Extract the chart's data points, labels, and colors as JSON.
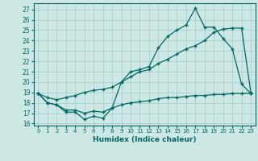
{
  "xlabel": "Humidex (Indice chaleur)",
  "background_color": "#cde8e4",
  "grid_color": "#a0cccc",
  "line_color": "#006666",
  "xlim": [
    -0.5,
    23.5
  ],
  "ylim": [
    15.8,
    27.6
  ],
  "xticks": [
    0,
    1,
    2,
    3,
    4,
    5,
    6,
    7,
    8,
    9,
    10,
    11,
    12,
    13,
    14,
    15,
    16,
    17,
    18,
    19,
    20,
    21,
    22,
    23
  ],
  "yticks": [
    16,
    17,
    18,
    19,
    20,
    21,
    22,
    23,
    24,
    25,
    26,
    27
  ],
  "line1_x": [
    0,
    1,
    2,
    3,
    4,
    5,
    6,
    7,
    8,
    9,
    10,
    11,
    12,
    13,
    14,
    15,
    16,
    17,
    18,
    19,
    20,
    21,
    22,
    23
  ],
  "line1_y": [
    18.9,
    18.0,
    17.8,
    17.1,
    17.1,
    16.4,
    16.7,
    16.5,
    17.5,
    20.0,
    21.0,
    21.2,
    21.5,
    23.3,
    24.4,
    25.0,
    25.5,
    27.1,
    25.3,
    25.3,
    24.2,
    23.2,
    19.8,
    18.9
  ],
  "line2_x": [
    0,
    1,
    2,
    3,
    4,
    5,
    6,
    7,
    8,
    9,
    10,
    11,
    12,
    13,
    14,
    15,
    16,
    17,
    18,
    19,
    20,
    21,
    22,
    23
  ],
  "line2_y": [
    18.9,
    18.5,
    18.3,
    18.5,
    18.7,
    19.0,
    19.2,
    19.3,
    19.5,
    20.0,
    20.5,
    21.0,
    21.2,
    21.8,
    22.2,
    22.7,
    23.2,
    23.5,
    24.0,
    24.8,
    25.1,
    25.2,
    25.2,
    19.0
  ],
  "line3_x": [
    0,
    1,
    2,
    3,
    4,
    5,
    6,
    7,
    8,
    9,
    10,
    11,
    12,
    13,
    14,
    15,
    16,
    17,
    18,
    19,
    20,
    21,
    22,
    23
  ],
  "line3_y": [
    18.9,
    18.0,
    17.8,
    17.3,
    17.3,
    17.0,
    17.2,
    17.1,
    17.5,
    17.8,
    18.0,
    18.1,
    18.2,
    18.4,
    18.5,
    18.5,
    18.6,
    18.7,
    18.7,
    18.8,
    18.8,
    18.9,
    18.9,
    18.9
  ]
}
